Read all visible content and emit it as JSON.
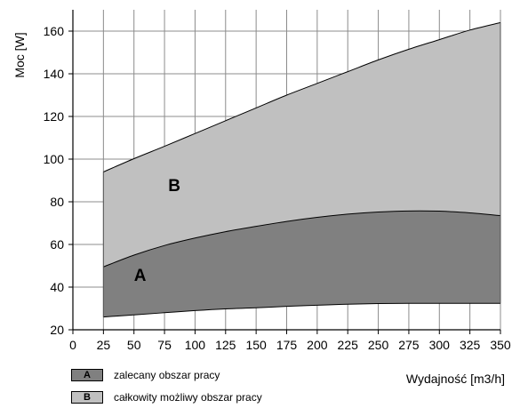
{
  "chart_data": {
    "type": "area",
    "xlabel": "Wydajność [m3/h]",
    "ylabel": "Moc [W]",
    "xlim": [
      0,
      350
    ],
    "ylim": [
      20,
      170
    ],
    "x_ticks": [
      0,
      25,
      50,
      75,
      100,
      125,
      150,
      175,
      200,
      225,
      250,
      275,
      300,
      325,
      350
    ],
    "y_ticks": [
      20,
      40,
      60,
      80,
      100,
      120,
      140,
      160
    ],
    "grid": true,
    "x": [
      25,
      50,
      75,
      100,
      125,
      150,
      175,
      200,
      225,
      250,
      275,
      300,
      325,
      350
    ],
    "curves": {
      "lower": [
        26,
        27,
        28,
        29,
        29.8,
        30.3,
        31,
        31.5,
        32,
        32.3,
        32.4,
        32.4,
        32.4,
        32.4
      ],
      "middle": [
        49.5,
        55,
        59.5,
        63,
        66,
        68.5,
        70.8,
        72.7,
        74.2,
        75.2,
        75.7,
        75.6,
        74.8,
        73.5
      ],
      "upper": [
        94,
        100.2,
        106,
        112,
        118,
        124,
        130,
        135.5,
        141,
        146.5,
        151.5,
        156,
        160.5,
        164
      ]
    },
    "regions": [
      {
        "label": "A",
        "description": "zalecany obszar pracy",
        "from": "lower",
        "to": "middle",
        "color": "#808080"
      },
      {
        "label": "B",
        "description": "całkowity możliwy obszar pracy",
        "from": "middle",
        "to": "upper",
        "color": "#c0c0c0"
      }
    ],
    "legend_position": "bottom-left"
  }
}
